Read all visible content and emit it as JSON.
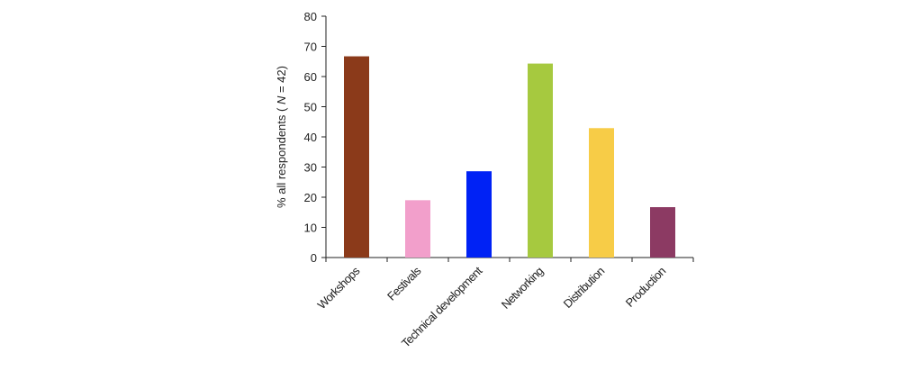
{
  "chart_data": {
    "type": "bar",
    "title": "",
    "xlabel": "",
    "ylabel": "% all respondents ( N = 42)",
    "ylabel_parts": {
      "prefix": "% all respondents ( ",
      "italic": "N",
      "suffix": " = 42)"
    },
    "ylim": [
      0,
      80
    ],
    "yticks": [
      0,
      10,
      20,
      30,
      40,
      50,
      60,
      70,
      80
    ],
    "grid": false,
    "legend": null,
    "categories": [
      "Workshops",
      "Festivals",
      "Technical development",
      "Networking",
      "Distribution",
      "Production"
    ],
    "values": [
      66.7,
      19.0,
      28.6,
      64.3,
      42.9,
      16.7
    ],
    "colors": [
      "#8B3A1A",
      "#F29FCB",
      "#0022F5",
      "#A6C93F",
      "#F7CC47",
      "#8C3A63"
    ]
  }
}
